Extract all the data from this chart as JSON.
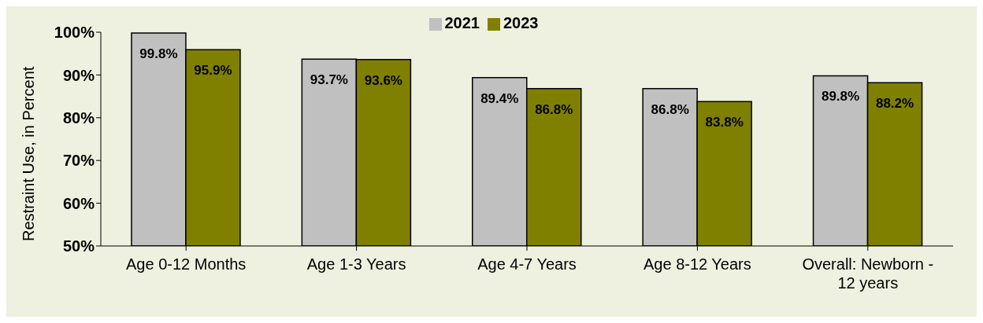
{
  "chart_data": {
    "type": "bar",
    "ylabel": "Restraint Use, in Percent",
    "categories": [
      "Age 0-12 Months",
      "Age 1-3 Years",
      "Age 4-7 Years",
      "Age 8-12 Years",
      "Overall: Newborn - 12 years"
    ],
    "series": [
      {
        "name": "2021",
        "color": "#c0c0c0",
        "values": [
          99.8,
          93.7,
          89.4,
          86.8,
          89.8
        ],
        "value_labels": [
          "99.8%",
          "93.7%",
          "89.4%",
          "86.8%",
          "89.8%"
        ]
      },
      {
        "name": "2023",
        "color": "#808000",
        "values": [
          95.9,
          93.6,
          86.8,
          83.8,
          88.2
        ],
        "value_labels": [
          "95.9%",
          "93.6%",
          "86.8%",
          "83.8%",
          "88.2%"
        ]
      }
    ],
    "ylim": [
      50,
      100
    ],
    "yticks": [
      {
        "value": 50,
        "label": "50%"
      },
      {
        "value": 60,
        "label": "60%"
      },
      {
        "value": 70,
        "label": "70%"
      },
      {
        "value": 80,
        "label": "80%"
      },
      {
        "value": 90,
        "label": "90%"
      },
      {
        "value": 100,
        "label": "100%"
      }
    ],
    "legend": "top",
    "grid": false
  }
}
